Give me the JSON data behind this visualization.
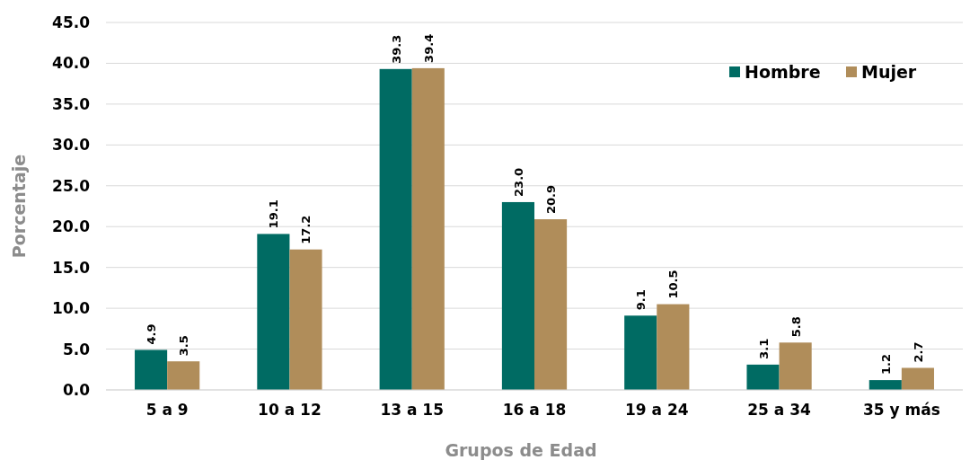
{
  "chart_data": {
    "type": "bar",
    "xlabel": "Grupos de Edad",
    "ylabel": "Porcentaje",
    "categories": [
      "5 a 9",
      "10 a 12",
      "13 a 15",
      "16 a 18",
      "19 a 24",
      "25 a 34",
      "35 y más"
    ],
    "series": [
      {
        "name": "Hombre",
        "color": "#006b63",
        "values": [
          4.9,
          19.1,
          39.3,
          23.0,
          9.1,
          3.1,
          1.2
        ],
        "value_labels": [
          "4.9",
          "19.1",
          "39.3",
          "23.0",
          "9.1",
          "3.1",
          "1.2"
        ]
      },
      {
        "name": "Mujer",
        "color": "#b08d5a",
        "values": [
          3.5,
          17.2,
          39.4,
          20.9,
          10.5,
          5.8,
          2.7
        ],
        "value_labels": [
          "3.5",
          "17.2",
          "39.4",
          "20.9",
          "10.5",
          "5.8",
          "2.7"
        ]
      }
    ],
    "ylim": [
      0,
      45
    ],
    "yticks": [
      {
        "value": 0,
        "label": "0.0"
      },
      {
        "value": 5,
        "label": "5.0"
      },
      {
        "value": 10,
        "label": "10.0"
      },
      {
        "value": 15,
        "label": "15.0"
      },
      {
        "value": 20,
        "label": "20.0"
      },
      {
        "value": 25,
        "label": "25.0"
      },
      {
        "value": 30,
        "label": "30.0"
      },
      {
        "value": 35,
        "label": "35.0"
      },
      {
        "value": 40,
        "label": "40.0"
      },
      {
        "value": 45,
        "label": "45.0"
      }
    ],
    "grid": "y",
    "legend": "top right"
  }
}
